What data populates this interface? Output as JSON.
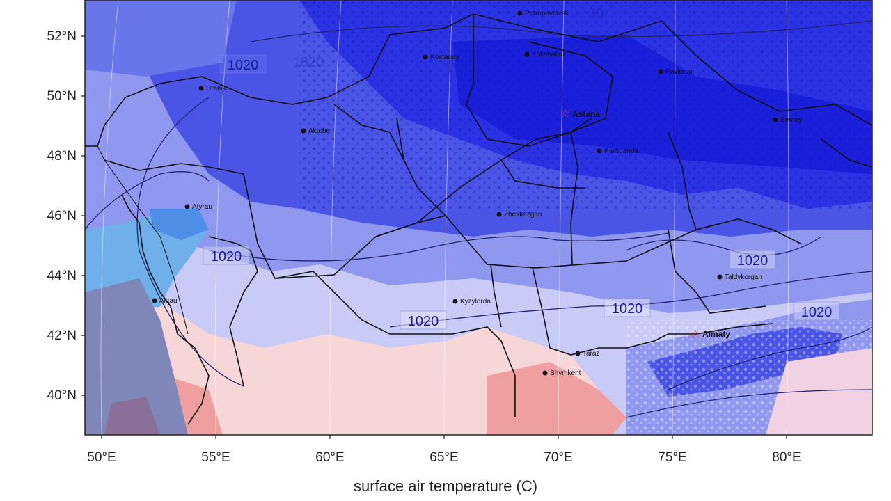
{
  "map": {
    "caption": "surface air temperature  (C)",
    "lat_labels": [
      "52°N",
      "50°N",
      "48°N",
      "46°N",
      "44°N",
      "42°N",
      "40°N"
    ],
    "lon_labels": [
      "50°E",
      "55°E",
      "60°E",
      "65°E",
      "70°E",
      "75°E",
      "80°E"
    ],
    "isobar_labels": [
      "1020",
      "1020",
      "1020",
      "1020",
      "1020",
      "1020",
      "1020",
      "30"
    ],
    "cities": [
      {
        "name": "Petropavlovsk",
        "marker": "dot"
      },
      {
        "name": "Kostanay",
        "marker": "dot"
      },
      {
        "name": "Kokshetau",
        "marker": "dot"
      },
      {
        "name": "Pavlodar",
        "marker": "dot"
      },
      {
        "name": "Uralsk",
        "marker": "dot"
      },
      {
        "name": "Astana",
        "marker": "star"
      },
      {
        "name": "Semey",
        "marker": "dot"
      },
      {
        "name": "Aktobe",
        "marker": "dot"
      },
      {
        "name": "Karaganda",
        "marker": "dot"
      },
      {
        "name": "Atyrau",
        "marker": "dot"
      },
      {
        "name": "Zheskazgan",
        "marker": "dot"
      },
      {
        "name": "Taldykorgan",
        "marker": "dot"
      },
      {
        "name": "Aktau",
        "marker": "dot"
      },
      {
        "name": "Kyzylorda",
        "marker": "dot"
      },
      {
        "name": "Almaty",
        "marker": "star"
      },
      {
        "name": "Taraz",
        "marker": "dot"
      },
      {
        "name": "Shymkent",
        "marker": "dot"
      }
    ],
    "colors": {
      "deep_blue": "#1f24e0",
      "mid_blue": "#4a55e6",
      "light_blue": "#8f97ee",
      "pale_blue": "#c7cbf6",
      "cyan_blue": "#6fb0ea",
      "pink": "#f6d6d6",
      "salmon": "#ef9f9f",
      "grey_purple": "#7f86b8",
      "boundary": "#111111",
      "isobar": "#22226e",
      "star": "#e8303a"
    }
  }
}
